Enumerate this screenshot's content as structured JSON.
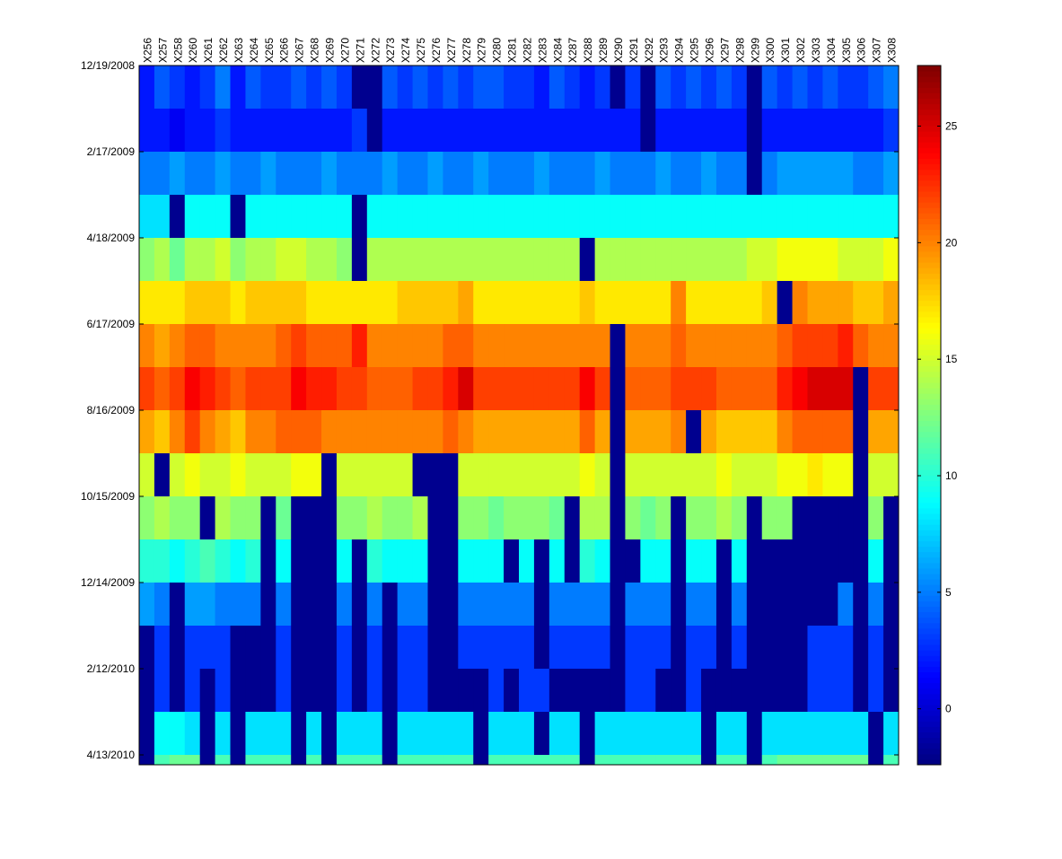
{
  "chart_data": {
    "type": "heatmap",
    "colormap": "jet",
    "missing_color": "#00008f",
    "columns": [
      "X256",
      "X257",
      "X258",
      "X260",
      "X261",
      "X262",
      "X263",
      "X264",
      "X265",
      "X266",
      "X267",
      "X268",
      "X269",
      "X270",
      "X271",
      "X272",
      "X273",
      "X274",
      "X275",
      "X276",
      "X277",
      "X278",
      "X279",
      "X280",
      "X281",
      "X282",
      "X283",
      "X284",
      "X287",
      "X288",
      "X289",
      "X290",
      "X291",
      "X292",
      "X293",
      "X294",
      "X295",
      "X296",
      "X297",
      "X298",
      "X299",
      "X300",
      "X301",
      "X302",
      "X303",
      "X304",
      "X305",
      "X306",
      "X307",
      "X308"
    ],
    "rows": [
      "12/19/2008",
      null,
      "2/17/2009",
      null,
      "4/18/2009",
      null,
      "6/17/2009",
      null,
      "8/16/2009",
      null,
      "10/15/2009",
      null,
      "12/14/2009",
      null,
      "2/12/2010",
      null,
      "4/13/2010"
    ],
    "values": [
      [
        2,
        4,
        3,
        2,
        3,
        5,
        2,
        4,
        3,
        3,
        4,
        3,
        4,
        3,
        -2,
        -2,
        4,
        3,
        4,
        3,
        4,
        3,
        4,
        4,
        3,
        3,
        2,
        4,
        3,
        2,
        3,
        -2,
        3,
        -2,
        4,
        3,
        4,
        3,
        4,
        3,
        -2,
        4,
        3,
        4,
        3,
        4,
        3,
        3,
        4,
        5
      ],
      [
        2,
        2,
        1,
        2,
        2,
        3,
        2,
        2,
        2,
        2,
        2,
        2,
        2,
        2,
        3,
        -2,
        2,
        2,
        2,
        2,
        2,
        2,
        2,
        2,
        2,
        2,
        2,
        2,
        2,
        2,
        2,
        2,
        2,
        -2,
        2,
        2,
        2,
        2,
        2,
        2,
        -2,
        2,
        2,
        2,
        2,
        2,
        2,
        2,
        2,
        3
      ],
      [
        5,
        5,
        6,
        5,
        5,
        6,
        5,
        5,
        6,
        5,
        5,
        5,
        6,
        5,
        5,
        5,
        6,
        5,
        5,
        6,
        5,
        5,
        6,
        5,
        5,
        5,
        6,
        5,
        5,
        5,
        6,
        5,
        5,
        5,
        6,
        5,
        5,
        6,
        5,
        5,
        -2,
        5,
        6,
        6,
        6,
        6,
        6,
        5,
        5,
        6
      ],
      [
        8,
        8,
        -2,
        9,
        9,
        9,
        -2,
        9,
        9,
        9,
        9,
        9,
        9,
        9,
        -2,
        9,
        9,
        9,
        9,
        9,
        9,
        9,
        9,
        9,
        9,
        9,
        9,
        9,
        9,
        9,
        9,
        9,
        9,
        9,
        9,
        9,
        9,
        9,
        9,
        9,
        9,
        9,
        9,
        9,
        9,
        9,
        9,
        9,
        9,
        9
      ],
      [
        13,
        14,
        12,
        14,
        14,
        15,
        13,
        14,
        14,
        15,
        15,
        14,
        14,
        13,
        -2,
        14,
        14,
        14,
        14,
        14,
        14,
        14,
        14,
        14,
        14,
        14,
        14,
        14,
        14,
        -2,
        14,
        14,
        14,
        14,
        14,
        14,
        14,
        14,
        14,
        14,
        15,
        15,
        16,
        16,
        16,
        16,
        15,
        15,
        15,
        16
      ],
      [
        17,
        17,
        17,
        18,
        18,
        18,
        17,
        18,
        18,
        18,
        18,
        17,
        17,
        17,
        17,
        17,
        17,
        18,
        18,
        18,
        18,
        19,
        17,
        17,
        17,
        17,
        17,
        17,
        17,
        18,
        17,
        17,
        17,
        17,
        17,
        20,
        17,
        17,
        17,
        17,
        17,
        18,
        -2,
        20,
        19,
        19,
        19,
        18,
        18,
        19
      ],
      [
        20,
        19,
        20,
        21,
        21,
        20,
        20,
        20,
        20,
        21,
        22,
        21,
        21,
        21,
        23,
        20,
        20,
        20,
        20,
        20,
        21,
        21,
        20,
        20,
        20,
        20,
        20,
        20,
        20,
        20,
        20,
        -2,
        20,
        20,
        20,
        21,
        20,
        20,
        20,
        20,
        20,
        20,
        21,
        22,
        22,
        22,
        23,
        21,
        20,
        20
      ],
      [
        22,
        21,
        22,
        24,
        23,
        22,
        21,
        22,
        22,
        22,
        24,
        23,
        23,
        22,
        22,
        21,
        21,
        21,
        22,
        22,
        23,
        25,
        22,
        22,
        22,
        22,
        22,
        22,
        22,
        24,
        22,
        -2,
        21,
        21,
        21,
        22,
        22,
        22,
        21,
        21,
        21,
        21,
        23,
        24,
        25,
        25,
        25,
        -2,
        22,
        22
      ],
      [
        19,
        18,
        20,
        22,
        20,
        19,
        18,
        20,
        20,
        21,
        21,
        21,
        20,
        20,
        20,
        20,
        20,
        20,
        20,
        20,
        21,
        20,
        19,
        19,
        19,
        19,
        19,
        19,
        19,
        21,
        19,
        -2,
        19,
        19,
        19,
        20,
        -2,
        19,
        18,
        18,
        18,
        18,
        20,
        21,
        21,
        21,
        21,
        -2,
        19,
        19
      ],
      [
        15,
        -2,
        15,
        16,
        15,
        15,
        16,
        15,
        15,
        15,
        16,
        16,
        -2,
        15,
        15,
        15,
        15,
        15,
        -2,
        -2,
        -2,
        15,
        15,
        15,
        15,
        15,
        15,
        15,
        15,
        16,
        15,
        -2,
        15,
        15,
        15,
        15,
        15,
        15,
        16,
        15,
        15,
        15,
        16,
        16,
        17,
        16,
        16,
        -2,
        15,
        15
      ],
      [
        13,
        14,
        13,
        13,
        -2,
        14,
        13,
        13,
        -2,
        12,
        -2,
        -2,
        -2,
        13,
        13,
        14,
        13,
        13,
        14,
        -2,
        -2,
        13,
        13,
        12,
        13,
        13,
        13,
        12,
        -2,
        14,
        14,
        -2,
        13,
        12,
        13,
        -2,
        13,
        13,
        14,
        13,
        -2,
        13,
        13,
        -2,
        -2,
        -2,
        -2,
        -2,
        13,
        -2
      ],
      [
        10,
        10,
        9,
        10,
        11,
        10,
        9,
        10,
        -2,
        9,
        -2,
        -2,
        -2,
        9,
        -2,
        10,
        9,
        9,
        9,
        -2,
        -2,
        9,
        9,
        9,
        -2,
        9,
        -2,
        9,
        -2,
        10,
        9,
        -2,
        -2,
        9,
        9,
        -2,
        9,
        9,
        -2,
        9,
        -2,
        -2,
        -2,
        -2,
        -2,
        -2,
        -2,
        -2,
        9,
        -2
      ],
      [
        6,
        5,
        -2,
        6,
        6,
        5,
        5,
        5,
        -2,
        5,
        -2,
        -2,
        -2,
        5,
        -2,
        5,
        -2,
        5,
        5,
        -2,
        -2,
        5,
        5,
        5,
        5,
        5,
        -2,
        5,
        5,
        5,
        5,
        -2,
        5,
        5,
        5,
        -2,
        5,
        5,
        -2,
        5,
        -2,
        -2,
        -2,
        -2,
        -2,
        -2,
        5,
        -2,
        5,
        -2
      ],
      [
        -2,
        3,
        -2,
        3,
        3,
        3,
        -2,
        -2,
        -2,
        3,
        -2,
        -2,
        -2,
        3,
        -2,
        3,
        -2,
        3,
        3,
        -2,
        -2,
        3,
        3,
        3,
        3,
        3,
        -2,
        3,
        3,
        3,
        3,
        -2,
        3,
        3,
        3,
        -2,
        3,
        3,
        -2,
        3,
        -2,
        -2,
        -2,
        -2,
        3,
        3,
        3,
        -2,
        3,
        -2
      ],
      [
        -2,
        3,
        -2,
        3,
        -2,
        3,
        -2,
        -2,
        -2,
        3,
        -2,
        -2,
        -2,
        3,
        -2,
        3,
        -2,
        3,
        3,
        -2,
        -2,
        -2,
        -2,
        3,
        -2,
        3,
        3,
        -2,
        -2,
        -2,
        -2,
        -2,
        3,
        3,
        -2,
        -2,
        3,
        -2,
        -2,
        -2,
        -2,
        -2,
        -2,
        -2,
        3,
        3,
        3,
        -2,
        3,
        -2
      ],
      [
        -2,
        9,
        9,
        8,
        -2,
        8,
        -2,
        8,
        8,
        8,
        -2,
        8,
        -2,
        8,
        8,
        8,
        -2,
        8,
        8,
        8,
        8,
        8,
        -2,
        8,
        8,
        8,
        -2,
        8,
        8,
        -2,
        8,
        8,
        8,
        8,
        8,
        8,
        8,
        -2,
        8,
        8,
        -2,
        8,
        8,
        8,
        8,
        8,
        8,
        8,
        -2,
        8
      ],
      [
        -2,
        11,
        12,
        12,
        -2,
        11,
        -2,
        11,
        11,
        11,
        -2,
        11,
        -2,
        11,
        11,
        11,
        -2,
        11,
        11,
        11,
        11,
        11,
        -2,
        11,
        11,
        11,
        11,
        11,
        11,
        -2,
        11,
        11,
        11,
        11,
        11,
        11,
        11,
        -2,
        11,
        11,
        -2,
        11,
        12,
        12,
        12,
        12,
        12,
        12,
        -2,
        11
      ]
    ],
    "zlim": [
      -2.4,
      27.6
    ],
    "colorbar_ticks": [
      0,
      5,
      10,
      15,
      20,
      25
    ]
  }
}
